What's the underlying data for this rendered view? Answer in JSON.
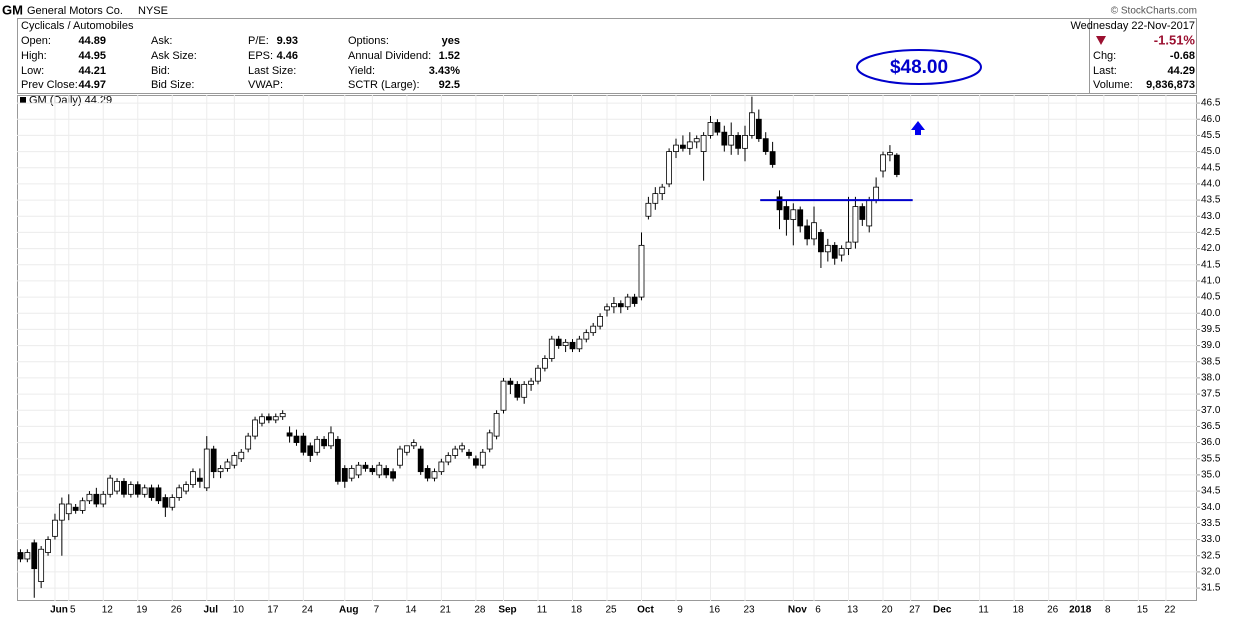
{
  "header": {
    "symbol": "GM",
    "name": "General Motors Co.",
    "exchange": "NYSE",
    "sector": "Cyclicals / Automobiles",
    "copyright": "© StockCharts.com",
    "date": "Wednesday 22-Nov-2017",
    "columns": [
      [
        {
          "label": "Open:",
          "value": 44.89
        },
        {
          "label": "High:",
          "value": 44.95
        },
        {
          "label": "Low:",
          "value": 44.21
        },
        {
          "label": "Prev Close:",
          "value": 44.97
        }
      ],
      [
        {
          "label": "Ask:"
        },
        {
          "label": "Ask Size:"
        },
        {
          "label": "Bid:"
        },
        {
          "label": "Bid Size:"
        }
      ],
      [
        {
          "label": "P/E:",
          "value": 9.93
        },
        {
          "label": "EPS:",
          "value": 4.46
        },
        {
          "label": "Last Size:"
        },
        {
          "label": "VWAP:"
        }
      ],
      [
        {
          "label": "Options:",
          "value": "yes"
        },
        {
          "label": "Annual Dividend:",
          "value": 1.52
        },
        {
          "label": "Yield:",
          "value": "3.43%"
        },
        {
          "label": "SCTR (Large):",
          "value": 92.5
        }
      ]
    ],
    "change_pct": "-1.51%",
    "quote": [
      {
        "label": "Chg:",
        "value": -0.68
      },
      {
        "label": "Last:",
        "value": 44.29
      },
      {
        "label": "Volume:",
        "value": "9,836,873"
      }
    ]
  },
  "chart_data": {
    "type": "candlestick",
    "title": "GM (Daily) 44.29",
    "color": "#000000",
    "grid": true,
    "ylim": [
      31.1,
      46.75
    ],
    "yticks": [
      31.5,
      {
        "value": 32,
        "label": "32.0"
      },
      32.5,
      {
        "value": 33,
        "label": "33.0"
      },
      33.5,
      {
        "value": 34,
        "label": "34.0"
      },
      34.5,
      {
        "value": 35,
        "label": "35.0"
      },
      35.5,
      {
        "value": 36,
        "label": "36.0"
      },
      36.5,
      {
        "value": 37,
        "label": "37.0"
      },
      37.5,
      {
        "value": 38,
        "label": "38.0"
      },
      38.5,
      {
        "value": 39,
        "label": "39.0"
      },
      39.5,
      {
        "value": 40,
        "label": "40.0"
      },
      40.5,
      {
        "value": 41,
        "label": "41.0"
      },
      41.5,
      {
        "value": 42,
        "label": "42.0"
      },
      42.5,
      {
        "value": 43,
        "label": "43.0"
      },
      43.5,
      {
        "value": 44,
        "label": "44.0"
      },
      44.5,
      {
        "value": 45,
        "label": "45.0"
      },
      45.5,
      {
        "value": 46,
        "label": "46.0"
      },
      46.5
    ],
    "categories": [
      null,
      null,
      null,
      null,
      null,
      "Jun",
      null,
      "5",
      null,
      null,
      null,
      null,
      "12",
      null,
      null,
      null,
      null,
      "19",
      null,
      null,
      null,
      null,
      "26",
      null,
      null,
      null,
      null,
      "Jul",
      null,
      null,
      null,
      "10",
      null,
      null,
      null,
      null,
      "17",
      null,
      null,
      null,
      null,
      "24",
      null,
      null,
      null,
      null,
      null,
      "Aug",
      null,
      null,
      null,
      "7",
      null,
      null,
      null,
      null,
      "14",
      null,
      null,
      null,
      null,
      "21",
      null,
      null,
      null,
      null,
      "28",
      null,
      null,
      null,
      "Sep",
      null,
      null,
      null,
      null,
      "11",
      null,
      null,
      null,
      null,
      "18",
      null,
      null,
      null,
      null,
      "25",
      null,
      null,
      null,
      null,
      "Oct",
      null,
      null,
      null,
      null,
      "9",
      null,
      null,
      null,
      null,
      "16",
      null,
      null,
      null,
      null,
      "23",
      null,
      null,
      null,
      null,
      null,
      null,
      "Nov",
      null,
      null,
      "6",
      null,
      null,
      null,
      null,
      "13",
      null,
      null,
      null,
      null,
      "20",
      null,
      null,
      null,
      "27",
      null,
      null,
      null,
      "Dec",
      null,
      null,
      null,
      null,
      null,
      "11",
      null,
      null,
      null,
      null,
      "18",
      null,
      null,
      null,
      null,
      "26",
      null,
      null,
      null,
      "2018",
      null,
      null,
      null,
      "8",
      null,
      null,
      null,
      null,
      "15",
      null,
      null,
      null,
      "22",
      null,
      null,
      null,
      null
    ],
    "open": [
      32.6,
      32.4,
      32.9,
      31.7,
      32.6,
      33.1,
      33.6,
      33.8,
      34.0,
      33.9,
      34.2,
      34.4,
      34.1,
      34.4,
      34.5,
      34.8,
      34.4,
      34.7,
      34.4,
      34.6,
      34.6,
      34.3,
      34.0,
      34.3,
      34.5,
      34.7,
      34.9,
      34.6,
      35.8,
      35.1,
      35.2,
      35.3,
      35.5,
      35.8,
      36.2,
      36.6,
      36.8,
      36.7,
      36.8,
      36.3,
      36.2,
      36.2,
      35.9,
      35.7,
      36.1,
      35.9,
      36.1,
      35.2,
      34.9,
      35.0,
      35.3,
      35.2,
      35.0,
      35.2,
      35.1,
      35.3,
      35.7,
      35.9,
      35.8,
      35.2,
      34.9,
      35.1,
      35.4,
      35.6,
      35.8,
      35.7,
      35.5,
      35.3,
      35.8,
      36.2,
      37.0,
      37.9,
      37.8,
      37.4,
      37.8,
      37.9,
      38.3,
      38.6,
      39.2,
      39.0,
      39.1,
      38.9,
      39.2,
      39.4,
      39.6,
      40.1,
      40.2,
      40.3,
      40.2,
      40.5,
      40.5,
      43.0,
      43.4,
      43.7,
      44.0,
      45.0,
      45.2,
      45.1,
      45.3,
      45.0,
      45.5,
      45.9,
      45.6,
      45.2,
      45.5,
      45.1,
      45.5,
      46.0,
      45.4,
      45.0,
      43.6,
      43.3,
      42.9,
      43.2,
      42.7,
      42.3,
      42.5,
      41.9,
      42.1,
      41.8,
      42.0,
      42.2,
      43.3,
      42.7,
      43.5,
      44.4,
      44.9,
      44.89,
      null,
      null,
      null,
      null,
      null,
      null,
      null,
      null,
      null,
      null,
      null,
      null,
      null,
      null,
      null,
      null,
      null,
      null,
      null,
      null,
      null,
      null,
      null,
      null,
      null,
      null,
      null,
      null,
      null,
      null,
      null,
      null,
      null,
      null,
      null,
      null,
      null,
      null,
      null,
      null,
      null,
      null,
      null
    ],
    "high": [
      32.7,
      32.7,
      33.0,
      32.8,
      33.1,
      33.8,
      34.3,
      34.4,
      34.1,
      34.3,
      34.5,
      34.6,
      34.5,
      35.0,
      34.9,
      34.9,
      34.8,
      34.8,
      34.7,
      34.7,
      34.7,
      34.4,
      34.4,
      34.7,
      34.8,
      35.2,
      35.2,
      36.2,
      35.9,
      35.3,
      35.5,
      35.7,
      35.8,
      36.3,
      36.8,
      36.9,
      36.9,
      36.9,
      37.0,
      36.5,
      36.4,
      36.3,
      36.0,
      36.2,
      36.2,
      36.5,
      36.2,
      35.3,
      35.3,
      35.4,
      35.4,
      35.3,
      35.4,
      35.3,
      35.2,
      35.9,
      35.9,
      36.1,
      35.9,
      35.3,
      35.2,
      35.5,
      35.7,
      35.9,
      36.0,
      35.8,
      35.6,
      35.8,
      36.4,
      37.0,
      38.0,
      38.0,
      37.9,
      37.9,
      38.0,
      38.4,
      38.7,
      39.3,
      39.3,
      39.2,
      39.2,
      39.3,
      39.5,
      39.7,
      40.0,
      40.3,
      40.5,
      40.4,
      40.6,
      40.6,
      42.5,
      43.6,
      43.9,
      44.0,
      45.1,
      45.4,
      45.5,
      45.6,
      45.5,
      45.6,
      46.1,
      46.0,
      45.8,
      45.9,
      45.6,
      45.8,
      46.7,
      46.3,
      45.6,
      45.3,
      43.8,
      43.5,
      43.4,
      43.3,
      42.9,
      43.3,
      42.6,
      42.3,
      42.2,
      42.1,
      43.6,
      43.6,
      43.4,
      43.6,
      44.2,
      45.0,
      45.2,
      44.95,
      null,
      null,
      null,
      null,
      null,
      null,
      null,
      null,
      null,
      null,
      null,
      null,
      null,
      null,
      null,
      null,
      null,
      null,
      null,
      null,
      null,
      null,
      null,
      null,
      null,
      null,
      null,
      null,
      null,
      null,
      null,
      null,
      null,
      null,
      null,
      null,
      null,
      null,
      null,
      null,
      null,
      null,
      null
    ],
    "low": [
      32.3,
      32.3,
      31.2,
      31.5,
      32.5,
      33.0,
      32.5,
      33.6,
      33.8,
      33.8,
      34.1,
      34.0,
      34.0,
      34.3,
      34.4,
      34.3,
      34.3,
      34.3,
      34.3,
      34.2,
      34.1,
      33.7,
      33.9,
      34.2,
      34.4,
      34.6,
      34.6,
      34.5,
      34.9,
      34.9,
      35.1,
      35.2,
      35.4,
      35.7,
      36.1,
      36.5,
      36.6,
      36.6,
      36.7,
      36.0,
      35.9,
      35.6,
      35.4,
      35.6,
      35.8,
      35.8,
      34.7,
      34.6,
      34.8,
      34.9,
      35.1,
      35.0,
      34.9,
      34.9,
      34.8,
      35.2,
      35.6,
      35.8,
      35.0,
      34.8,
      34.8,
      35.0,
      35.3,
      35.5,
      35.7,
      35.5,
      35.2,
      35.2,
      35.7,
      36.1,
      36.9,
      37.5,
      37.3,
      37.2,
      37.6,
      37.8,
      38.2,
      38.5,
      38.9,
      38.8,
      38.8,
      38.8,
      39.1,
      39.3,
      39.5,
      39.9,
      40.0,
      40.0,
      40.1,
      40.2,
      40.4,
      42.9,
      43.2,
      43.5,
      43.9,
      44.8,
      45.0,
      44.9,
      45.1,
      44.1,
      45.4,
      45.5,
      45.0,
      44.9,
      44.9,
      44.7,
      45.4,
      45.3,
      44.9,
      44.5,
      42.6,
      42.4,
      42.1,
      42.5,
      42.1,
      42.1,
      41.4,
      41.6,
      41.5,
      41.6,
      41.8,
      42.0,
      42.7,
      42.5,
      43.4,
      44.2,
      44.7,
      44.21,
      null,
      null,
      null,
      null,
      null,
      null,
      null,
      null,
      null,
      null,
      null,
      null,
      null,
      null,
      null,
      null,
      null,
      null,
      null,
      null,
      null,
      null,
      null,
      null,
      null,
      null,
      null,
      null,
      null,
      null,
      null,
      null,
      null,
      null,
      null,
      null,
      null,
      null,
      null,
      null,
      null,
      null,
      null
    ],
    "close": [
      32.4,
      32.6,
      32.1,
      32.7,
      33.0,
      33.6,
      34.1,
      34.1,
      33.9,
      34.2,
      34.4,
      34.1,
      34.4,
      34.9,
      34.8,
      34.4,
      34.7,
      34.4,
      34.6,
      34.3,
      34.2,
      34.0,
      34.3,
      34.6,
      34.7,
      35.1,
      34.8,
      35.8,
      35.1,
      35.2,
      35.4,
      35.6,
      35.7,
      36.2,
      36.7,
      36.8,
      36.7,
      36.8,
      36.9,
      36.2,
      36.0,
      35.7,
      35.6,
      36.1,
      35.9,
      36.3,
      34.8,
      34.8,
      35.2,
      35.3,
      35.2,
      35.1,
      35.3,
      35.0,
      34.9,
      35.8,
      35.9,
      36.0,
      35.1,
      34.9,
      35.1,
      35.4,
      35.6,
      35.8,
      35.9,
      35.6,
      35.3,
      35.7,
      36.3,
      36.9,
      37.9,
      37.8,
      37.4,
      37.8,
      37.9,
      38.3,
      38.6,
      39.2,
      39.0,
      39.1,
      38.9,
      39.2,
      39.4,
      39.6,
      39.9,
      40.2,
      40.3,
      40.2,
      40.5,
      40.3,
      42.1,
      43.4,
      43.7,
      43.9,
      45.0,
      45.2,
      45.1,
      45.3,
      45.4,
      45.5,
      45.9,
      45.6,
      45.2,
      45.5,
      45.1,
      45.5,
      46.2,
      45.4,
      45.0,
      44.6,
      43.2,
      42.9,
      43.2,
      42.7,
      42.3,
      42.8,
      41.9,
      42.1,
      41.7,
      42.0,
      42.2,
      43.3,
      42.9,
      43.5,
      43.9,
      44.9,
      44.97,
      44.29,
      null,
      null,
      null,
      null,
      null,
      null,
      null,
      null,
      null,
      null,
      null,
      null,
      null,
      null,
      null,
      null,
      null,
      null,
      null,
      null,
      null,
      null,
      null,
      null,
      null,
      null,
      null,
      null,
      null,
      null,
      null,
      null,
      null,
      null,
      null,
      null,
      null,
      null,
      null,
      null,
      null,
      null,
      null
    ],
    "support_line": {
      "value": 43.5,
      "color": "#0000cc"
    },
    "target_label": "$48.00"
  }
}
